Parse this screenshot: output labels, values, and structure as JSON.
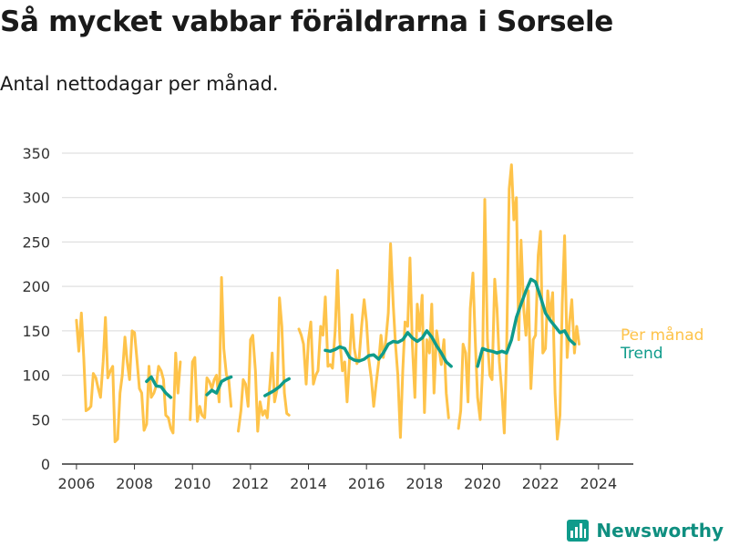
{
  "header": {
    "title": "Så mycket vabbar föräldrarna i Sorsele",
    "subtitle": "Antal nettodagar per månad."
  },
  "brand": {
    "name": "Newsworthy"
  },
  "colors": {
    "per_month": "#fec34a",
    "trend": "#0f9b8b",
    "grid": "#d9d9d9",
    "axis": "#333333"
  },
  "chart_data": {
    "type": "line",
    "title": "Så mycket vabbar föräldrarna i Sorsele",
    "subtitle": "Antal nettodagar per månad.",
    "xlabel": "",
    "ylabel": "",
    "xlim": [
      2005.5,
      2025.2
    ],
    "ylim": [
      0,
      350
    ],
    "x_ticks": [
      2006,
      2008,
      2010,
      2012,
      2014,
      2016,
      2018,
      2020,
      2022,
      2024
    ],
    "x_tick_labels": [
      "2006",
      "2008",
      "2010",
      "2012",
      "2014",
      "2016",
      "2018",
      "2020",
      "2022",
      "2024"
    ],
    "y_ticks": [
      0,
      50,
      100,
      150,
      200,
      250,
      300,
      350
    ],
    "y_tick_labels": [
      "0",
      "50",
      "100",
      "150",
      "200",
      "250",
      "300",
      "350"
    ],
    "grid": true,
    "legend": "right, end of lines",
    "series": [
      {
        "name": "Per månad",
        "color": "#fec34a",
        "segments": [
          [
            [
              2006.0,
              162
            ],
            [
              2006.08,
              127
            ],
            [
              2006.17,
              170
            ],
            [
              2006.25,
              120
            ],
            [
              2006.33,
              60
            ],
            [
              2006.42,
              62
            ],
            [
              2006.5,
              65
            ],
            [
              2006.58,
              102
            ],
            [
              2006.67,
              97
            ],
            [
              2006.75,
              85
            ],
            [
              2006.83,
              75
            ],
            [
              2006.92,
              115
            ],
            [
              2007.0,
              165
            ],
            [
              2007.08,
              97
            ],
            [
              2007.17,
              105
            ],
            [
              2007.25,
              110
            ],
            [
              2007.33,
              25
            ],
            [
              2007.42,
              28
            ],
            [
              2007.5,
              80
            ],
            [
              2007.58,
              100
            ],
            [
              2007.67,
              143
            ],
            [
              2007.75,
              115
            ],
            [
              2007.83,
              95
            ],
            [
              2007.92,
              150
            ],
            [
              2008.0,
              148
            ],
            [
              2008.08,
              120
            ],
            [
              2008.17,
              85
            ],
            [
              2008.25,
              80
            ],
            [
              2008.33,
              38
            ],
            [
              2008.42,
              45
            ],
            [
              2008.5,
              110
            ],
            [
              2008.58,
              75
            ],
            [
              2008.67,
              80
            ],
            [
              2008.75,
              88
            ],
            [
              2008.83,
              110
            ],
            [
              2008.92,
              105
            ],
            [
              2009.0,
              95
            ],
            [
              2009.08,
              55
            ],
            [
              2009.17,
              52
            ],
            [
              2009.25,
              40
            ],
            [
              2009.33,
              35
            ],
            [
              2009.42,
              125
            ],
            [
              2009.5,
              80
            ],
            [
              2009.58,
              115
            ]
          ],
          [
            [
              2009.92,
              50
            ],
            [
              2010.0,
              115
            ],
            [
              2010.08,
              120
            ],
            [
              2010.17,
              48
            ],
            [
              2010.25,
              65
            ],
            [
              2010.33,
              55
            ],
            [
              2010.42,
              52
            ],
            [
              2010.5,
              97
            ],
            [
              2010.58,
              93
            ],
            [
              2010.67,
              85
            ],
            [
              2010.75,
              95
            ],
            [
              2010.83,
              100
            ],
            [
              2010.92,
              70
            ],
            [
              2011.0,
              210
            ],
            [
              2011.08,
              130
            ],
            [
              2011.17,
              100
            ],
            [
              2011.25,
              95
            ],
            [
              2011.33,
              65
            ]
          ],
          [
            [
              2011.58,
              37
            ],
            [
              2011.67,
              60
            ],
            [
              2011.75,
              95
            ],
            [
              2011.83,
              90
            ],
            [
              2011.92,
              65
            ],
            [
              2012.0,
              140
            ],
            [
              2012.08,
              145
            ],
            [
              2012.17,
              105
            ],
            [
              2012.25,
              37
            ],
            [
              2012.33,
              70
            ],
            [
              2012.42,
              55
            ],
            [
              2012.5,
              60
            ],
            [
              2012.58,
              52
            ],
            [
              2012.67,
              90
            ],
            [
              2012.75,
              125
            ],
            [
              2012.83,
              70
            ],
            [
              2012.92,
              85
            ],
            [
              2013.0,
              187
            ],
            [
              2013.08,
              155
            ],
            [
              2013.17,
              80
            ],
            [
              2013.25,
              57
            ],
            [
              2013.33,
              55
            ]
          ],
          [
            [
              2013.67,
              152
            ],
            [
              2013.75,
              145
            ],
            [
              2013.83,
              135
            ],
            [
              2013.92,
              90
            ],
            [
              2014.0,
              140
            ],
            [
              2014.08,
              160
            ],
            [
              2014.17,
              90
            ],
            [
              2014.25,
              100
            ],
            [
              2014.33,
              105
            ],
            [
              2014.42,
              155
            ],
            [
              2014.5,
              145
            ],
            [
              2014.58,
              188
            ],
            [
              2014.67,
              110
            ],
            [
              2014.75,
              112
            ],
            [
              2014.83,
              108
            ],
            [
              2014.92,
              150
            ],
            [
              2015.0,
              218
            ],
            [
              2015.08,
              140
            ],
            [
              2015.17,
              105
            ],
            [
              2015.25,
              115
            ],
            [
              2015.33,
              70
            ],
            [
              2015.42,
              120
            ],
            [
              2015.5,
              168
            ],
            [
              2015.58,
              130
            ],
            [
              2015.67,
              113
            ],
            [
              2015.75,
              120
            ],
            [
              2015.83,
              155
            ],
            [
              2015.92,
              185
            ],
            [
              2016.0,
              160
            ],
            [
              2016.08,
              118
            ],
            [
              2016.17,
              95
            ],
            [
              2016.25,
              65
            ],
            [
              2016.33,
              90
            ],
            [
              2016.42,
              115
            ],
            [
              2016.5,
              145
            ],
            [
              2016.58,
              120
            ],
            [
              2016.67,
              140
            ],
            [
              2016.75,
              170
            ],
            [
              2016.83,
              248
            ],
            [
              2016.92,
              180
            ],
            [
              2017.0,
              135
            ],
            [
              2017.08,
              100
            ],
            [
              2017.17,
              30
            ],
            [
              2017.25,
              105
            ],
            [
              2017.33,
              160
            ],
            [
              2017.42,
              155
            ],
            [
              2017.5,
              232
            ],
            [
              2017.58,
              135
            ],
            [
              2017.67,
              75
            ],
            [
              2017.75,
              180
            ],
            [
              2017.83,
              150
            ],
            [
              2017.92,
              190
            ],
            [
              2018.0,
              58
            ],
            [
              2018.08,
              140
            ],
            [
              2018.17,
              125
            ],
            [
              2018.25,
              180
            ],
            [
              2018.33,
              80
            ],
            [
              2018.42,
              150
            ],
            [
              2018.5,
              130
            ],
            [
              2018.58,
              112
            ],
            [
              2018.67,
              140
            ],
            [
              2018.75,
              80
            ],
            [
              2018.83,
              52
            ]
          ],
          [
            [
              2019.17,
              40
            ],
            [
              2019.25,
              60
            ],
            [
              2019.33,
              135
            ],
            [
              2019.42,
              125
            ],
            [
              2019.5,
              70
            ],
            [
              2019.58,
              175
            ],
            [
              2019.67,
              215
            ],
            [
              2019.75,
              140
            ],
            [
              2019.83,
              75
            ],
            [
              2019.92,
              50
            ],
            [
              2020.0,
              105
            ],
            [
              2020.08,
              298
            ],
            [
              2020.17,
              140
            ],
            [
              2020.25,
              100
            ],
            [
              2020.33,
              95
            ],
            [
              2020.42,
              208
            ],
            [
              2020.5,
              175
            ],
            [
              2020.58,
              115
            ],
            [
              2020.67,
              80
            ],
            [
              2020.75,
              35
            ],
            [
              2020.83,
              125
            ],
            [
              2020.92,
              310
            ],
            [
              2021.0,
              337
            ],
            [
              2021.08,
              275
            ],
            [
              2021.17,
              300
            ],
            [
              2021.25,
              140
            ],
            [
              2021.33,
              252
            ],
            [
              2021.42,
              175
            ],
            [
              2021.5,
              145
            ],
            [
              2021.58,
              195
            ],
            [
              2021.67,
              85
            ],
            [
              2021.75,
              140
            ],
            [
              2021.83,
              145
            ],
            [
              2021.92,
              235
            ],
            [
              2022.0,
              262
            ],
            [
              2022.08,
              125
            ],
            [
              2022.17,
              130
            ],
            [
              2022.25,
              195
            ],
            [
              2022.33,
              165
            ],
            [
              2022.42,
              193
            ],
            [
              2022.5,
              80
            ],
            [
              2022.58,
              28
            ],
            [
              2022.67,
              55
            ],
            [
              2022.75,
              180
            ],
            [
              2022.83,
              257
            ],
            [
              2022.92,
              120
            ],
            [
              2023.0,
              160
            ],
            [
              2023.08,
              185
            ],
            [
              2023.17,
              125
            ],
            [
              2023.25,
              155
            ],
            [
              2023.33,
              135
            ]
          ]
        ]
      },
      {
        "name": "Trend",
        "color": "#0f9b8b",
        "segments": [
          [
            [
              2008.42,
              93
            ],
            [
              2008.58,
              98
            ],
            [
              2008.75,
              88
            ],
            [
              2008.92,
              87
            ],
            [
              2009.08,
              80
            ],
            [
              2009.25,
              75
            ]
          ],
          [
            [
              2010.5,
              78
            ],
            [
              2010.67,
              83
            ],
            [
              2010.83,
              80
            ],
            [
              2011.0,
              93
            ],
            [
              2011.17,
              96
            ],
            [
              2011.33,
              98
            ]
          ],
          [
            [
              2012.5,
              77
            ],
            [
              2012.67,
              80
            ],
            [
              2012.83,
              83
            ],
            [
              2013.0,
              87
            ],
            [
              2013.17,
              93
            ],
            [
              2013.33,
              96
            ]
          ],
          [
            [
              2014.58,
              128
            ],
            [
              2014.75,
              127
            ],
            [
              2014.92,
              129
            ],
            [
              2015.08,
              132
            ],
            [
              2015.25,
              130
            ],
            [
              2015.42,
              120
            ],
            [
              2015.58,
              117
            ],
            [
              2015.75,
              116
            ],
            [
              2015.92,
              118
            ],
            [
              2016.08,
              122
            ],
            [
              2016.25,
              123
            ],
            [
              2016.42,
              118
            ],
            [
              2016.58,
              125
            ],
            [
              2016.75,
              135
            ],
            [
              2016.92,
              138
            ],
            [
              2017.08,
              137
            ],
            [
              2017.25,
              140
            ],
            [
              2017.42,
              148
            ],
            [
              2017.58,
              142
            ],
            [
              2017.75,
              138
            ],
            [
              2017.92,
              142
            ],
            [
              2018.08,
              150
            ],
            [
              2018.25,
              143
            ],
            [
              2018.42,
              133
            ],
            [
              2018.58,
              125
            ],
            [
              2018.75,
              115
            ],
            [
              2018.92,
              110
            ]
          ],
          [
            [
              2019.83,
              110
            ],
            [
              2020.0,
              130
            ],
            [
              2020.17,
              128
            ],
            [
              2020.33,
              127
            ],
            [
              2020.5,
              125
            ],
            [
              2020.67,
              127
            ],
            [
              2020.83,
              125
            ],
            [
              2021.0,
              140
            ],
            [
              2021.17,
              165
            ],
            [
              2021.33,
              180
            ],
            [
              2021.5,
              195
            ],
            [
              2021.67,
              208
            ],
            [
              2021.83,
              205
            ],
            [
              2022.0,
              188
            ],
            [
              2022.17,
              170
            ],
            [
              2022.33,
              162
            ],
            [
              2022.5,
              155
            ],
            [
              2022.67,
              148
            ],
            [
              2022.83,
              150
            ],
            [
              2023.0,
              140
            ],
            [
              2023.17,
              135
            ]
          ]
        ]
      }
    ]
  }
}
